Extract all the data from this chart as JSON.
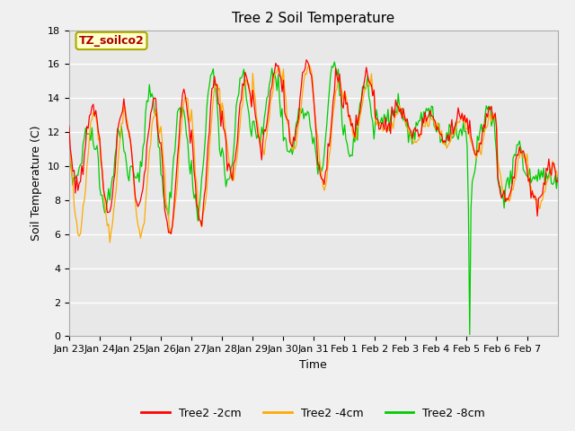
{
  "title": "Tree 2 Soil Temperature",
  "xlabel": "Time",
  "ylabel": "Soil Temperature (C)",
  "ylim": [
    0,
    18
  ],
  "yticks": [
    0,
    2,
    4,
    6,
    8,
    10,
    12,
    14,
    16,
    18
  ],
  "annotation_text": "TZ_soilco2",
  "annotation_color": "#aa0000",
  "annotation_bg": "#ffffcc",
  "annotation_border": "#aaaa00",
  "fig_bg": "#f0f0f0",
  "plot_bg": "#e8e8e8",
  "grid_color": "#ffffff",
  "line_colors": {
    "2cm": "#ff0000",
    "4cm": "#ffaa00",
    "8cm": "#00cc00"
  },
  "legend_labels": [
    "Tree2 -2cm",
    "Tree2 -4cm",
    "Tree2 -8cm"
  ],
  "x_tick_labels": [
    "Jan 23",
    "Jan 24",
    "Jan 25",
    "Jan 26",
    "Jan 27",
    "Jan 28",
    "Jan 29",
    "Jan 30",
    "Jan 31",
    "Feb 1",
    "Feb 2",
    "Feb 3",
    "Feb 4",
    "Feb 5",
    "Feb 6",
    "Feb 7"
  ],
  "num_days": 16,
  "peaks_2cm": [
    13.5,
    13.5,
    13.6,
    14.2,
    15.2,
    15.3,
    16.0,
    16.1,
    15.4,
    15.4,
    13.4,
    13.0,
    13.0,
    13.2,
    11.0,
    10.0
  ],
  "valleys_2cm": [
    8.8,
    7.4,
    7.6,
    5.9,
    6.6,
    9.4,
    11.1,
    11.2,
    8.9,
    12.0,
    12.3,
    11.8,
    11.5,
    10.9,
    8.0,
    7.9
  ],
  "peaks_4cm": [
    13.2,
    13.2,
    13.3,
    14.0,
    15.0,
    15.1,
    15.8,
    15.9,
    15.2,
    15.2,
    13.2,
    12.8,
    12.8,
    13.0,
    10.8,
    9.8
  ],
  "valleys_4cm": [
    6.1,
    6.0,
    5.9,
    6.3,
    6.5,
    9.4,
    11.0,
    11.0,
    8.8,
    11.8,
    12.1,
    11.6,
    11.3,
    10.7,
    7.8,
    7.7
  ],
  "peaks_8cm": [
    12.1,
    12.2,
    14.3,
    13.9,
    15.6,
    15.5,
    15.5,
    13.5,
    16.0,
    14.6,
    13.4,
    13.3,
    12.1,
    13.3,
    11.2,
    9.4
  ],
  "valleys_8cm": [
    9.4,
    7.5,
    8.9,
    7.3,
    7.2,
    9.1,
    11.5,
    11.0,
    9.5,
    10.7,
    12.2,
    11.7,
    11.8,
    10.5,
    8.3,
    9.3
  ],
  "spike_8cm_day": 13,
  "spike_8cm_hour": 2,
  "spike_8cm_value": 0.1
}
